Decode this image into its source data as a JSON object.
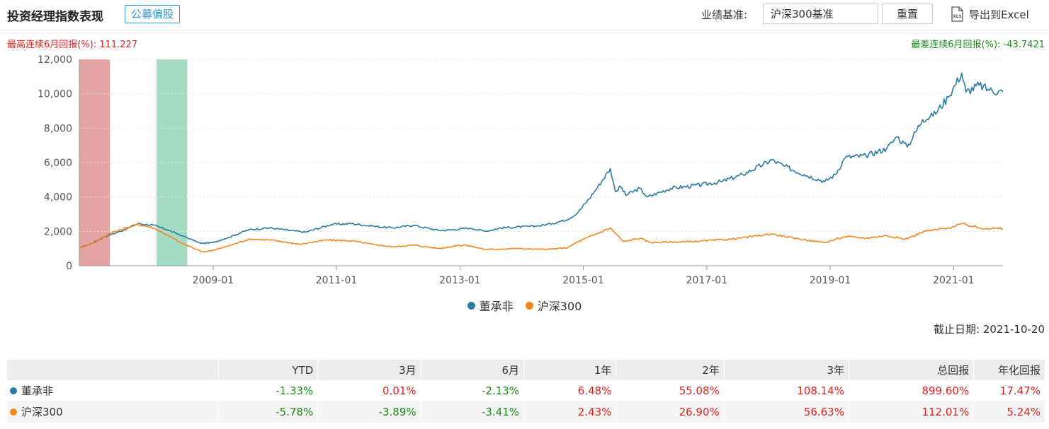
{
  "header": {
    "title": "投资经理指数表现",
    "tag": "公募偏股",
    "benchmark_label": "业绩基准:",
    "benchmark_value": "沪深300基准",
    "reset_label": "重置",
    "export_label": "导出到Excel",
    "export_icon_text": "XLS"
  },
  "max_return_text": "最高连续6月回报(%):  111.227",
  "min_return_text": "最差连续6月回报(%):  -43.7421",
  "as_of_text": "截止日期:  2021-10-20",
  "colors": {
    "manager": "#2a7aa2",
    "index": "#f5871f",
    "best_band": "#e5a3a3",
    "worst_band": "#a3dcc3"
  },
  "chart_data": {
    "type": "line",
    "x_range": [
      "2006-11-01",
      "2021-10-20"
    ],
    "ylim": [
      0,
      12000
    ],
    "y_ticks": [
      "0",
      "2,000",
      "4,000",
      "6,000",
      "8,000",
      "10,000",
      "12,000"
    ],
    "x_ticks": [
      "2009-01",
      "2011-01",
      "2013-01",
      "2015-01",
      "2017-01",
      "2019-01",
      "2021-01"
    ],
    "highlight_bands": [
      {
        "type": "best",
        "start": "2006-11-01",
        "end": "2007-04-30"
      },
      {
        "type": "worst",
        "start": "2008-02-01",
        "end": "2008-08-01"
      }
    ],
    "legend_position": "bottom-center",
    "series": [
      {
        "name": "董承非",
        "key": "manager",
        "points": [
          [
            "2006-11-01",
            1050
          ],
          [
            "2007-01-15",
            1300
          ],
          [
            "2007-04-01",
            1700
          ],
          [
            "2007-07-01",
            2000
          ],
          [
            "2007-10-15",
            2450
          ],
          [
            "2008-01-15",
            2350
          ],
          [
            "2008-04-01",
            2100
          ],
          [
            "2008-07-01",
            1750
          ],
          [
            "2008-10-20",
            1300
          ],
          [
            "2009-01-01",
            1350
          ],
          [
            "2009-04-01",
            1650
          ],
          [
            "2009-08-01",
            2100
          ],
          [
            "2009-12-01",
            2200
          ],
          [
            "2010-04-01",
            2050
          ],
          [
            "2010-07-01",
            1950
          ],
          [
            "2010-12-01",
            2400
          ],
          [
            "2011-04-01",
            2450
          ],
          [
            "2011-08-01",
            2300
          ],
          [
            "2011-12-01",
            2200
          ],
          [
            "2012-04-01",
            2350
          ],
          [
            "2012-09-01",
            2050
          ],
          [
            "2012-12-01",
            2100
          ],
          [
            "2013-03-01",
            2200
          ],
          [
            "2013-06-01",
            2000
          ],
          [
            "2013-09-01",
            2200
          ],
          [
            "2013-12-01",
            2250
          ],
          [
            "2014-04-01",
            2300
          ],
          [
            "2014-07-01",
            2450
          ],
          [
            "2014-10-01",
            2700
          ],
          [
            "2014-12-01",
            3100
          ],
          [
            "2015-03-01",
            4200
          ],
          [
            "2015-06-10",
            5650
          ],
          [
            "2015-07-10",
            4300
          ],
          [
            "2015-08-10",
            4600
          ],
          [
            "2015-09-10",
            4100
          ],
          [
            "2015-12-01",
            4500
          ],
          [
            "2016-01-15",
            4000
          ],
          [
            "2016-06-01",
            4500
          ],
          [
            "2016-12-01",
            4700
          ],
          [
            "2017-04-01",
            4900
          ],
          [
            "2017-08-01",
            5300
          ],
          [
            "2017-12-01",
            5900
          ],
          [
            "2018-01-20",
            6150
          ],
          [
            "2018-04-01",
            5800
          ],
          [
            "2018-08-01",
            5300
          ],
          [
            "2018-12-01",
            4900
          ],
          [
            "2019-02-01",
            5300
          ],
          [
            "2019-04-01",
            6300
          ],
          [
            "2019-08-01",
            6400
          ],
          [
            "2019-12-01",
            6800
          ],
          [
            "2020-02-01",
            7500
          ],
          [
            "2020-04-01",
            6900
          ],
          [
            "2020-07-01",
            8500
          ],
          [
            "2020-09-01",
            8700
          ],
          [
            "2020-12-01",
            9800
          ],
          [
            "2021-02-18",
            11200
          ],
          [
            "2021-03-15",
            10100
          ],
          [
            "2021-06-01",
            10500
          ],
          [
            "2021-08-01",
            10200
          ],
          [
            "2021-10-20",
            10100
          ]
        ]
      },
      {
        "name": "沪深300",
        "key": "index",
        "points": [
          [
            "2006-11-01",
            1050
          ],
          [
            "2007-02-01",
            1350
          ],
          [
            "2007-05-01",
            1900
          ],
          [
            "2007-10-15",
            2400
          ],
          [
            "2008-01-15",
            2200
          ],
          [
            "2008-04-01",
            1800
          ],
          [
            "2008-07-01",
            1300
          ],
          [
            "2008-11-01",
            800
          ],
          [
            "2009-01-01",
            900
          ],
          [
            "2009-04-01",
            1150
          ],
          [
            "2009-08-01",
            1550
          ],
          [
            "2009-12-01",
            1500
          ],
          [
            "2010-06-01",
            1250
          ],
          [
            "2010-11-01",
            1500
          ],
          [
            "2011-04-01",
            1450
          ],
          [
            "2011-08-01",
            1250
          ],
          [
            "2011-12-01",
            1100
          ],
          [
            "2012-04-01",
            1200
          ],
          [
            "2012-09-01",
            1000
          ],
          [
            "2012-12-01",
            1150
          ],
          [
            "2013-02-01",
            1200
          ],
          [
            "2013-06-01",
            950
          ],
          [
            "2013-12-01",
            1000
          ],
          [
            "2014-06-01",
            950
          ],
          [
            "2014-10-01",
            1050
          ],
          [
            "2014-12-01",
            1400
          ],
          [
            "2015-06-10",
            2200
          ],
          [
            "2015-08-25",
            1400
          ],
          [
            "2015-12-01",
            1600
          ],
          [
            "2016-02-01",
            1350
          ],
          [
            "2016-10-01",
            1400
          ],
          [
            "2017-06-01",
            1550
          ],
          [
            "2018-01-20",
            1850
          ],
          [
            "2018-06-01",
            1600
          ],
          [
            "2018-12-01",
            1350
          ],
          [
            "2019-04-01",
            1700
          ],
          [
            "2019-08-01",
            1600
          ],
          [
            "2019-12-01",
            1750
          ],
          [
            "2020-03-20",
            1550
          ],
          [
            "2020-07-15",
            2000
          ],
          [
            "2020-12-01",
            2200
          ],
          [
            "2021-02-18",
            2450
          ],
          [
            "2021-06-01",
            2200
          ],
          [
            "2021-10-20",
            2150
          ]
        ]
      }
    ]
  },
  "table": {
    "headers": [
      "",
      "YTD",
      "3月",
      "6月",
      "1年",
      "2年",
      "3年",
      "总回报",
      "年化回报"
    ],
    "rows": [
      {
        "name": "董承非",
        "key": "manager",
        "values": [
          "-1.33%",
          "0.01%",
          "-2.13%",
          "6.48%",
          "55.08%",
          "108.14%",
          "899.60%",
          "17.47%"
        ]
      },
      {
        "name": "沪深300",
        "key": "index",
        "values": [
          "-5.78%",
          "-3.89%",
          "-3.41%",
          "2.43%",
          "26.90%",
          "56.63%",
          "112.01%",
          "5.24%"
        ]
      }
    ]
  }
}
